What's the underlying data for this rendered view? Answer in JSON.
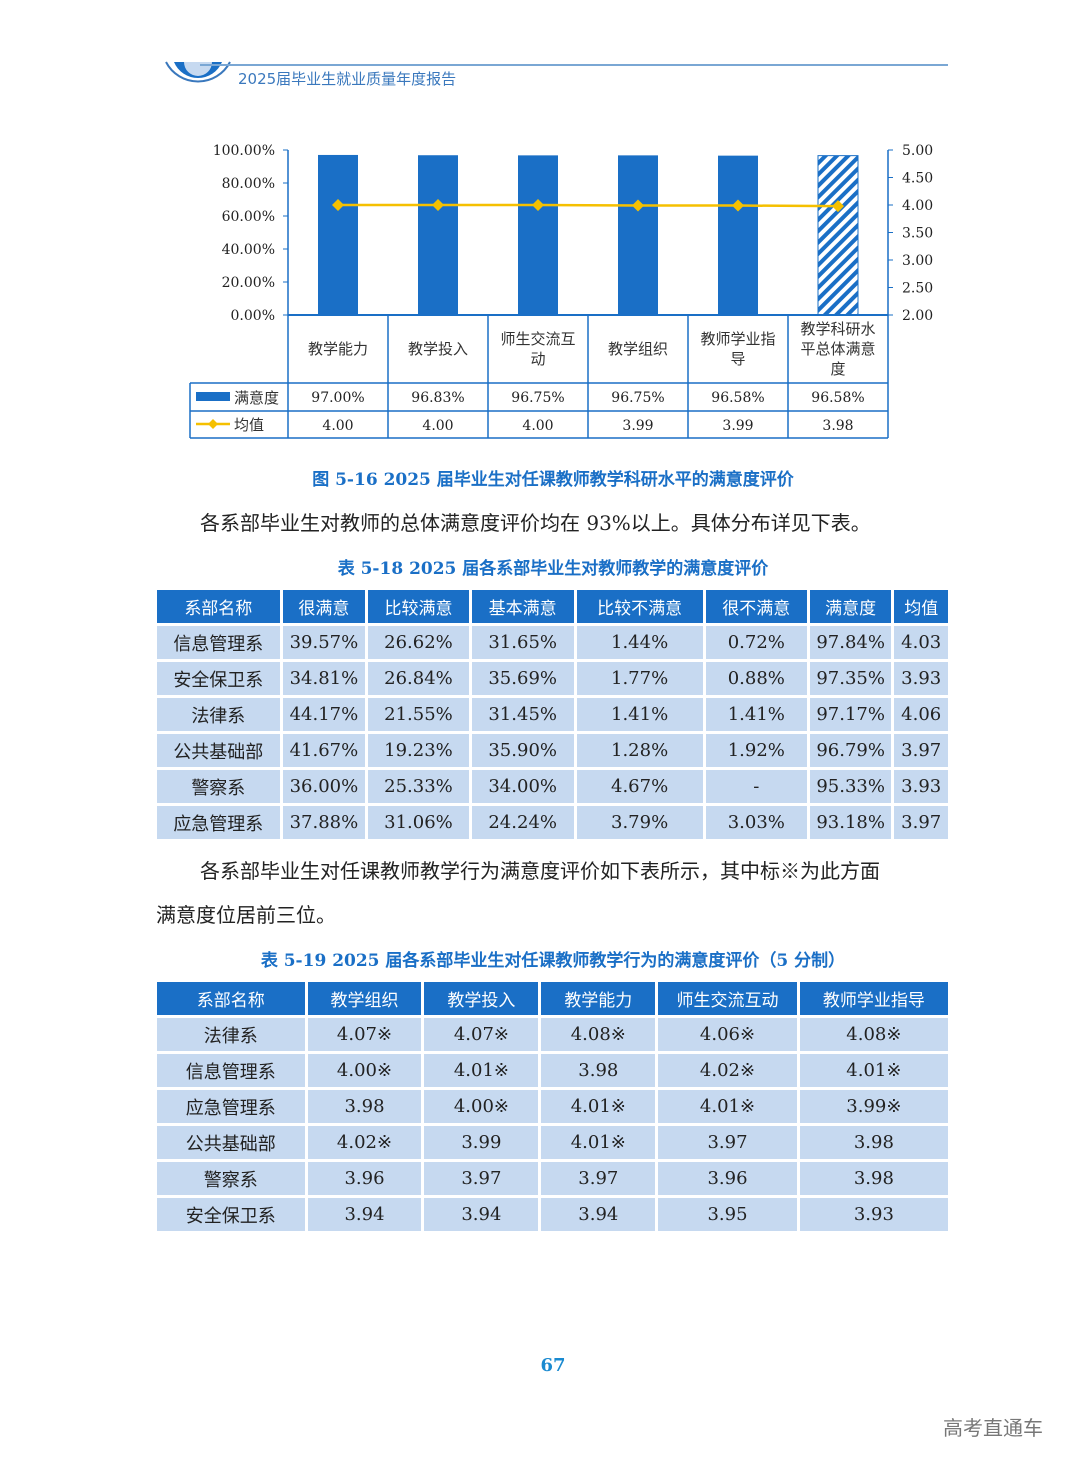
{
  "header": {
    "title": "2025届毕业生就业质量年度报告"
  },
  "chart_data": {
    "type": "bar",
    "categories": [
      "教学能力",
      "教学投入",
      "师生交流互动",
      "教学组织",
      "教师学业指导",
      "教学科研水平总体满意度"
    ],
    "series": [
      {
        "name": "满意度",
        "type": "bar",
        "axis": "left",
        "values": [
          97.0,
          96.83,
          96.75,
          96.75,
          96.58,
          96.58
        ],
        "labels": [
          "97.00%",
          "96.83%",
          "96.75%",
          "96.75%",
          "96.58%",
          "96.58%"
        ],
        "color": "#1a6fc6"
      },
      {
        "name": "均值",
        "type": "line",
        "axis": "right",
        "values": [
          4.0,
          4.0,
          4.0,
          3.99,
          3.99,
          3.98
        ],
        "labels": [
          "4.00",
          "4.00",
          "4.00",
          "3.99",
          "3.99",
          "3.98"
        ],
        "color": "#f5c000"
      }
    ],
    "left_ticks": [
      "0.00%",
      "20.00%",
      "40.00%",
      "60.00%",
      "80.00%",
      "100.00%"
    ],
    "right_ticks": [
      "2.00",
      "2.50",
      "3.00",
      "3.50",
      "4.00",
      "4.50",
      "5.00"
    ],
    "ylim_left": [
      0,
      100
    ],
    "ylim_right": [
      2,
      5
    ],
    "last_bar_pattern": "hatched",
    "legend": "data-table"
  },
  "fig_caption": "图 5-16  2025 届毕业生对任课教师教学科研水平的满意度评价",
  "para1": "各系部毕业生对教师的总体满意度评价均在 93%以上。具体分布详见下表。",
  "table1": {
    "caption": "表 5-18  2025 届各系部毕业生对教师教学的满意度评价",
    "headers": [
      "系部名称",
      "很满意",
      "比较满意",
      "基本满意",
      "比较不满意",
      "很不满意",
      "满意度",
      "均值"
    ],
    "rows": [
      [
        "信息管理系",
        "39.57%",
        "26.62%",
        "31.65%",
        "1.44%",
        "0.72%",
        "97.84%",
        "4.03"
      ],
      [
        "安全保卫系",
        "34.81%",
        "26.84%",
        "35.69%",
        "1.77%",
        "0.88%",
        "97.35%",
        "3.93"
      ],
      [
        "法律系",
        "44.17%",
        "21.55%",
        "31.45%",
        "1.41%",
        "1.41%",
        "97.17%",
        "4.06"
      ],
      [
        "公共基础部",
        "41.67%",
        "19.23%",
        "35.90%",
        "1.28%",
        "1.92%",
        "96.79%",
        "3.97"
      ],
      [
        "警察系",
        "36.00%",
        "25.33%",
        "34.00%",
        "4.67%",
        "-",
        "95.33%",
        "3.93"
      ],
      [
        "应急管理系",
        "37.88%",
        "31.06%",
        "24.24%",
        "3.79%",
        "3.03%",
        "93.18%",
        "3.97"
      ]
    ]
  },
  "para2a": "各系部毕业生对任课教师教学行为满意度评价如下表所示，其中标※为此方面",
  "para2b": "满意度位居前三位。",
  "table2": {
    "caption": "表 5-19  2025 届各系部毕业生对任课教师教学行为的满意度评价（5 分制）",
    "headers": [
      "系部名称",
      "教学组织",
      "教学投入",
      "教学能力",
      "师生交流互动",
      "教师学业指导"
    ],
    "rows": [
      [
        "法律系",
        "4.07※",
        "4.07※",
        "4.08※",
        "4.06※",
        "4.08※"
      ],
      [
        "信息管理系",
        "4.00※",
        "4.01※",
        "3.98",
        "4.02※",
        "4.01※"
      ],
      [
        "应急管理系",
        "3.98",
        "4.00※",
        "4.01※",
        "4.01※",
        "3.99※"
      ],
      [
        "公共基础部",
        "4.02※",
        "3.99",
        "4.01※",
        "3.97",
        "3.98"
      ],
      [
        "警察系",
        "3.96",
        "3.97",
        "3.97",
        "3.96",
        "3.98"
      ],
      [
        "安全保卫系",
        "3.94",
        "3.94",
        "3.94",
        "3.95",
        "3.93"
      ]
    ]
  },
  "page_number": "67",
  "watermark": "高考直通车"
}
